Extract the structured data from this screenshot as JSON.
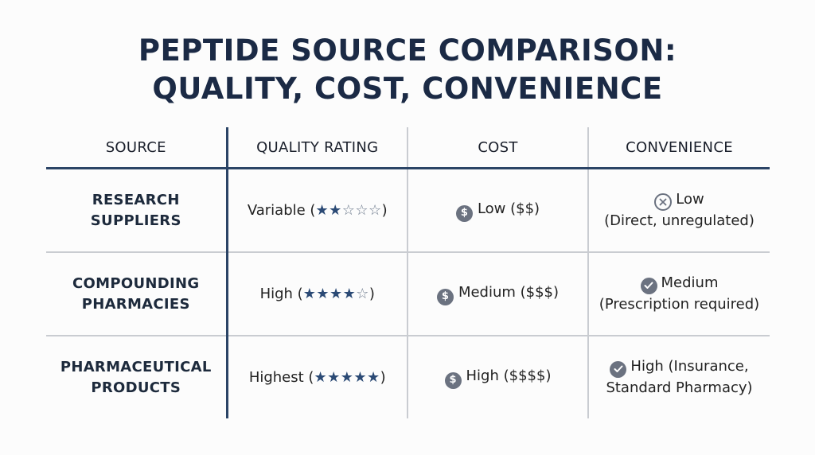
{
  "title": {
    "line1": "PEPTIDE SOURCE COMPARISON:",
    "line2": "QUALITY, COST, CONVENIENCE"
  },
  "table": {
    "headers": [
      "SOURCE",
      "QUALITY RATING",
      "COST",
      "CONVENIENCE"
    ],
    "rows": [
      {
        "source_line1": "RESEARCH",
        "source_line2": "SUPPLIERS",
        "quality_label": "Variable (",
        "quality_close": ")",
        "stars_filled": 2,
        "stars_total": 5,
        "cost": "Low ($$)",
        "cost_icon": "dollar-icon",
        "convenience_icon": "x-circle-icon",
        "convenience_line1": "Low",
        "convenience_line2": "(Direct, unregulated)"
      },
      {
        "source_line1": "COMPOUNDING",
        "source_line2": "PHARMACIES",
        "quality_label": "High (",
        "quality_close": ")",
        "stars_filled": 4,
        "stars_total": 5,
        "cost": "Medium ($$$)",
        "cost_icon": "dollar-icon",
        "convenience_icon": "check-circle-icon",
        "convenience_line1": "Medium",
        "convenience_line2": "(Prescription required)"
      },
      {
        "source_line1": "PHARMACEUTICAL",
        "source_line2": "PRODUCTS",
        "quality_label": "Highest (",
        "quality_close": ")",
        "stars_filled": 5,
        "stars_total": 5,
        "cost": "High ($$$$)",
        "cost_icon": "dollar-icon",
        "convenience_icon": "check-circle-icon",
        "convenience_line1": "High (Insurance,",
        "convenience_line2": "Standard Pharmacy)"
      }
    ]
  },
  "colors": {
    "title": "#1b2a45",
    "header_rule": "#2b4466",
    "star_filled": "#2b4a75",
    "icon_gray": "#6b7280"
  }
}
